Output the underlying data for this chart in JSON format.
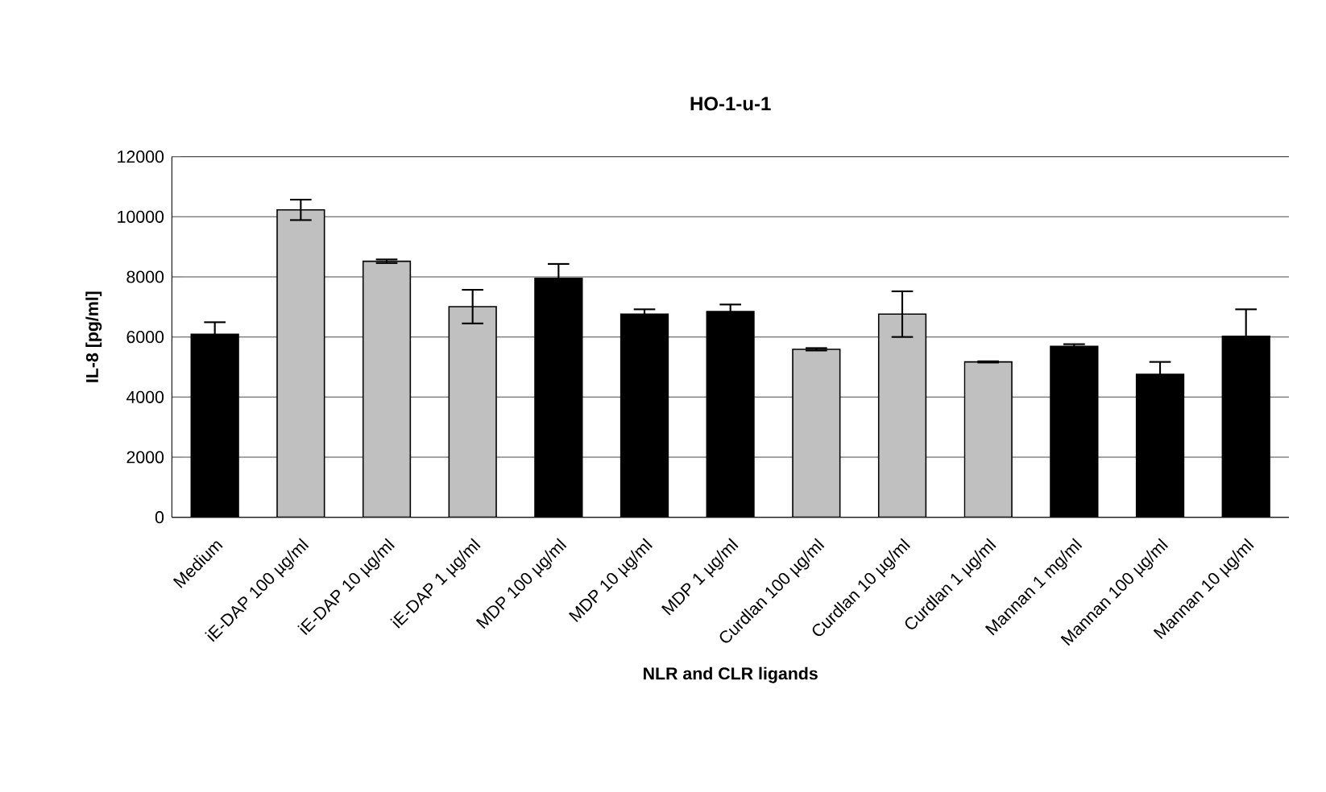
{
  "chart_data": {
    "type": "bar",
    "title": "HO-1-u-1",
    "xlabel": "NLR and CLR ligands",
    "ylabel": "IL-8 [pg/ml]",
    "categories": [
      "Medium",
      "iE-DAP 100 µg/ml",
      "iE-DAP 10 µg/ml",
      "iE-DAP 1 µg/ml",
      "MDP 100 µg/ml",
      "MDP 10 µg/ml",
      "MDP 1 µg/ml",
      "Curdlan 100 µg/ml",
      "Curdlan 10 µg/ml",
      "Curdlan 1 µg/ml",
      "Mannan 1 mg/ml",
      "Mannan 100 µg/ml",
      "Mannan 10 µg/ml"
    ],
    "values": [
      6090,
      10230,
      8520,
      7010,
      7950,
      6760,
      6850,
      5590,
      6760,
      5170,
      5690,
      4760,
      6020
    ],
    "errors": [
      400,
      340,
      60,
      560,
      480,
      160,
      230,
      40,
      760,
      20,
      70,
      410,
      900
    ],
    "colors": [
      "#000000",
      "#c0c0c0",
      "#c0c0c0",
      "#c0c0c0",
      "#000000",
      "#000000",
      "#000000",
      "#c0c0c0",
      "#c0c0c0",
      "#c0c0c0",
      "#000000",
      "#000000",
      "#000000"
    ],
    "ylim": [
      0,
      12000
    ],
    "yticks": [
      0,
      2000,
      4000,
      6000,
      8000,
      10000,
      12000
    ],
    "grid": "y"
  }
}
